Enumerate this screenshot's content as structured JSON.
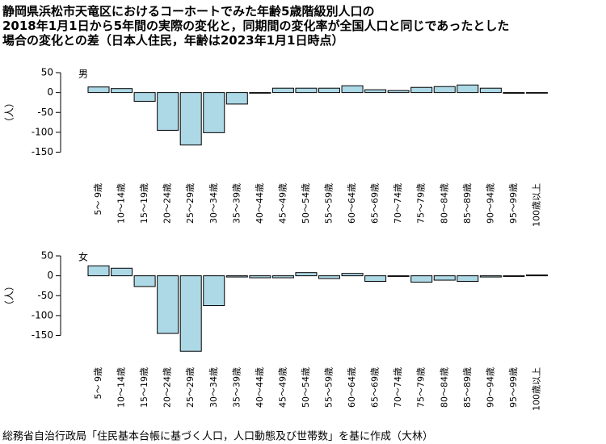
{
  "title_lines": [
    "静岡県浜松市天竜区におけるコーホートでみた年齢5歳階級別人口の",
    "2018年1月1日から5年間の実際の変化と，同期間の変化率が全国人口と同じであったとした",
    "場合の変化との差（日本人住民，年齢は2023年1月1日時点）"
  ],
  "source": "総務省自治行政局「住民基本台帳に基づく人口，人口動態及び世帯数」を基に作成（大林）",
  "chart_data": [
    {
      "type": "bar",
      "label": "男",
      "ylabel": "（人）",
      "color": "#add8e6",
      "categories": [
        "5～ 9歳",
        "10～14歳",
        "15～19歳",
        "20～24歳",
        "25～29歳",
        "30～34歳",
        "35～39歳",
        "40～44歳",
        "45～49歳",
        "50～54歳",
        "55～59歳",
        "60～64歳",
        "65～69歳",
        "70～74歳",
        "75～79歳",
        "80～84歳",
        "85～89歳",
        "90～94歳",
        "95～99歳",
        "100歳以上"
      ],
      "values": [
        14,
        10,
        -22,
        -95,
        -132,
        -101,
        -29,
        -1,
        11,
        11,
        11,
        17,
        7,
        5,
        13,
        15,
        19,
        11,
        -2,
        0
      ],
      "ylim": [
        -150,
        50
      ],
      "yticks": [
        50,
        0,
        -50,
        -100,
        -150
      ]
    },
    {
      "type": "bar",
      "label": "女",
      "ylabel": "（人）",
      "color": "#add8e6",
      "categories": [
        "5～ 9歳",
        "10～14歳",
        "15～19歳",
        "20～24歳",
        "25～29歳",
        "30～34歳",
        "35～39歳",
        "40～44歳",
        "45～49歳",
        "50～54歳",
        "55～59歳",
        "60～64歳",
        "65～69歳",
        "70～74歳",
        "75～79歳",
        "80～84歳",
        "85～89歳",
        "90～94歳",
        "95～99歳",
        "100歳以上"
      ],
      "values": [
        25,
        19,
        -27,
        -145,
        -190,
        -75,
        -3,
        -5,
        -5,
        8,
        -7,
        6,
        -14,
        -1,
        -16,
        -11,
        -14,
        -3,
        -1,
        2
      ],
      "ylim": [
        -190,
        50
      ],
      "yticks": [
        50,
        0,
        -50,
        -100,
        -150
      ]
    }
  ]
}
